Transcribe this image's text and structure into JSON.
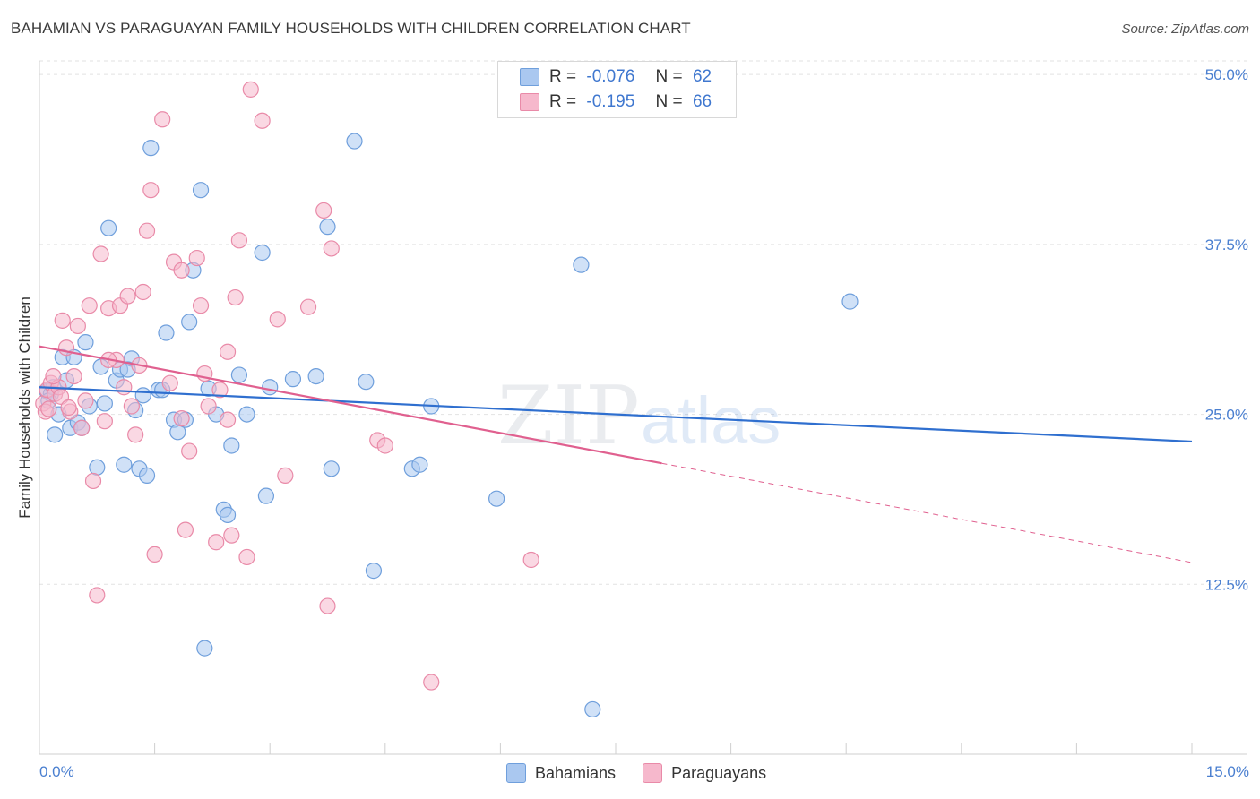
{
  "header": {
    "title": "BAHAMIAN VS PARAGUAYAN FAMILY HOUSEHOLDS WITH CHILDREN CORRELATION CHART",
    "source": "Source: ZipAtlas.com"
  },
  "stats": {
    "bahamians": {
      "r_label": "R =",
      "r_value": "-0.076",
      "n_label": "N =",
      "n_value": "62"
    },
    "paraguayans": {
      "r_label": "R =",
      "r_value": "-0.195",
      "n_label": "N =",
      "n_value": "66"
    }
  },
  "watermark": {
    "zip": "ZIP",
    "atlas": "atlas"
  },
  "colors": {
    "bahamians_fill": "#aac8f0",
    "bahamians_stroke": "#6f9fdc",
    "bahamians_line": "#2f6fcf",
    "paraguayans_fill": "#f6b8cc",
    "paraguayans_stroke": "#e98aa8",
    "paraguayans_line": "#e0608f",
    "tick_label": "#4a7fd0"
  },
  "chart_data": {
    "type": "scatter",
    "title": "BAHAMIAN VS PARAGUAYAN FAMILY HOUSEHOLDS WITH CHILDREN CORRELATION CHART",
    "xlabel": "",
    "ylabel": "Family Households with Children",
    "xlim": [
      0,
      15
    ],
    "ylim": [
      0,
      51
    ],
    "x_tick_labels": [
      "0.0%",
      "15.0%"
    ],
    "y_ticks": [
      12.5,
      25.0,
      37.5,
      50.0
    ],
    "y_tick_labels": [
      "12.5%",
      "25.0%",
      "37.5%",
      "50.0%"
    ],
    "grid": true,
    "legend_position": "bottom",
    "series": [
      {
        "name": "Bahamians",
        "trend": {
          "x": [
            0,
            15
          ],
          "y": [
            27.0,
            23.0
          ]
        },
        "points": [
          [
            0.1,
            26.7
          ],
          [
            0.15,
            26.5
          ],
          [
            0.2,
            23.5
          ],
          [
            0.25,
            25.0
          ],
          [
            0.3,
            29.2
          ],
          [
            0.35,
            27.5
          ],
          [
            0.4,
            24.0
          ],
          [
            0.5,
            24.4
          ],
          [
            0.6,
            30.3
          ],
          [
            0.65,
            25.6
          ],
          [
            0.75,
            21.1
          ],
          [
            0.8,
            28.5
          ],
          [
            0.85,
            25.8
          ],
          [
            0.9,
            38.7
          ],
          [
            1.0,
            27.5
          ],
          [
            1.05,
            28.3
          ],
          [
            1.1,
            21.3
          ],
          [
            1.2,
            29.1
          ],
          [
            1.25,
            25.3
          ],
          [
            1.3,
            21.0
          ],
          [
            1.35,
            26.4
          ],
          [
            1.4,
            20.5
          ],
          [
            1.45,
            44.6
          ],
          [
            1.55,
            26.8
          ],
          [
            1.6,
            26.8
          ],
          [
            1.65,
            31.0
          ],
          [
            1.75,
            24.6
          ],
          [
            1.8,
            23.7
          ],
          [
            1.9,
            24.6
          ],
          [
            1.95,
            31.8
          ],
          [
            2.0,
            35.6
          ],
          [
            2.1,
            41.5
          ],
          [
            2.2,
            26.9
          ],
          [
            2.3,
            25.0
          ],
          [
            2.4,
            18.0
          ],
          [
            2.45,
            17.6
          ],
          [
            2.5,
            22.7
          ],
          [
            2.6,
            27.9
          ],
          [
            2.7,
            25.0
          ],
          [
            2.9,
            36.9
          ],
          [
            2.95,
            19.0
          ],
          [
            3.0,
            27.0
          ],
          [
            3.3,
            27.6
          ],
          [
            3.6,
            27.8
          ],
          [
            3.75,
            38.8
          ],
          [
            3.8,
            21.0
          ],
          [
            4.1,
            45.1
          ],
          [
            4.25,
            27.4
          ],
          [
            4.35,
            13.5
          ],
          [
            4.85,
            21.0
          ],
          [
            4.95,
            21.3
          ],
          [
            5.1,
            25.6
          ],
          [
            5.95,
            18.8
          ],
          [
            7.05,
            36.0
          ],
          [
            7.2,
            3.3
          ],
          [
            10.55,
            33.3
          ],
          [
            0.12,
            26.0
          ],
          [
            0.18,
            27.0
          ],
          [
            0.45,
            29.2
          ],
          [
            0.55,
            24.0
          ],
          [
            1.15,
            28.3
          ],
          [
            2.15,
            7.8
          ]
        ]
      },
      {
        "name": "Paraguayans",
        "trend": {
          "x": [
            0,
            8.1
          ],
          "y": [
            30.0,
            21.4
          ]
        },
        "trend_dashed": {
          "x": [
            8.1,
            15
          ],
          "y": [
            21.4,
            14.1
          ]
        },
        "points": [
          [
            0.05,
            25.8
          ],
          [
            0.08,
            25.2
          ],
          [
            0.1,
            26.8
          ],
          [
            0.15,
            27.3
          ],
          [
            0.2,
            26.5
          ],
          [
            0.25,
            27.0
          ],
          [
            0.3,
            31.9
          ],
          [
            0.35,
            29.9
          ],
          [
            0.4,
            25.2
          ],
          [
            0.45,
            27.8
          ],
          [
            0.5,
            31.5
          ],
          [
            0.55,
            24.0
          ],
          [
            0.6,
            26.0
          ],
          [
            0.65,
            33.0
          ],
          [
            0.7,
            20.1
          ],
          [
            0.75,
            11.7
          ],
          [
            0.8,
            36.8
          ],
          [
            0.85,
            24.5
          ],
          [
            0.9,
            32.8
          ],
          [
            1.0,
            29.0
          ],
          [
            1.05,
            33.0
          ],
          [
            1.1,
            27.0
          ],
          [
            1.15,
            33.7
          ],
          [
            1.2,
            25.6
          ],
          [
            1.25,
            23.5
          ],
          [
            1.3,
            28.6
          ],
          [
            1.4,
            38.5
          ],
          [
            1.45,
            41.5
          ],
          [
            1.5,
            14.7
          ],
          [
            1.6,
            46.7
          ],
          [
            1.7,
            27.3
          ],
          [
            1.75,
            36.2
          ],
          [
            1.85,
            24.7
          ],
          [
            1.9,
            16.5
          ],
          [
            1.95,
            22.3
          ],
          [
            2.05,
            36.5
          ],
          [
            2.1,
            33.0
          ],
          [
            2.15,
            28.0
          ],
          [
            2.2,
            25.6
          ],
          [
            2.3,
            15.6
          ],
          [
            2.35,
            26.8
          ],
          [
            2.45,
            29.6
          ],
          [
            2.5,
            16.1
          ],
          [
            2.55,
            33.6
          ],
          [
            2.6,
            37.8
          ],
          [
            2.7,
            14.5
          ],
          [
            2.75,
            48.9
          ],
          [
            2.9,
            46.6
          ],
          [
            3.1,
            32.0
          ],
          [
            3.2,
            20.5
          ],
          [
            3.5,
            32.9
          ],
          [
            3.7,
            40.0
          ],
          [
            3.75,
            10.9
          ],
          [
            3.8,
            37.2
          ],
          [
            4.4,
            23.1
          ],
          [
            4.5,
            22.7
          ],
          [
            5.1,
            5.3
          ],
          [
            6.4,
            14.3
          ],
          [
            0.12,
            25.4
          ],
          [
            0.18,
            27.8
          ],
          [
            0.28,
            26.3
          ],
          [
            0.38,
            25.5
          ],
          [
            1.85,
            35.6
          ],
          [
            2.45,
            24.6
          ],
          [
            0.9,
            29.0
          ],
          [
            1.35,
            34.0
          ]
        ]
      }
    ]
  },
  "legend": {
    "bahamians": "Bahamians",
    "paraguayans": "Paraguayans"
  }
}
